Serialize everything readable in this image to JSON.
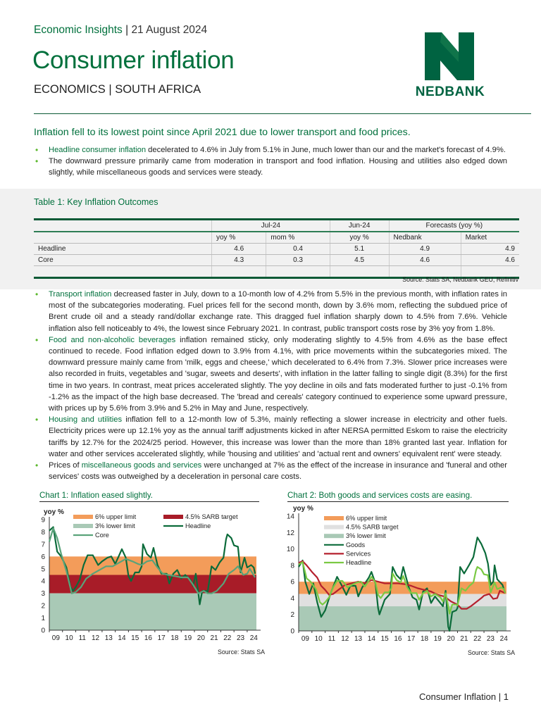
{
  "header": {
    "series": "Economic Insights",
    "separator": "|",
    "date": "21 August 2024",
    "title": "Consumer inflation",
    "subtitle": "ECONOMICS | SOUTH AFRICA",
    "logo_text": "NEDBANK"
  },
  "summary": {
    "lede": "Inflation fell to its lowest point since April 2021 due to lower transport and food prices.",
    "bullets": [
      {
        "highlight": "Headline consumer inflation",
        "text": " decelerated to 4.6% in July from 5.1% in June, much lower than our and the market's forecast of 4.9%."
      },
      {
        "highlight": "",
        "text": "The downward pressure primarily came from moderation in transport and food inflation. Housing and utilities also edged down slightly, while miscellaneous goods and services were steady."
      }
    ]
  },
  "table": {
    "title": "Table 1: Key Inflation Outcomes",
    "group_headers": [
      "",
      "Jul-24",
      "Jun-24",
      "Forecasts (yoy %)"
    ],
    "sub_headers": [
      "",
      "yoy %",
      "mom %",
      "yoy %",
      "Nedbank",
      "Market"
    ],
    "rows": [
      [
        "Headline",
        "4.6",
        "0.4",
        "5.1",
        "4.9",
        "4.9"
      ],
      [
        "Core",
        "4.3",
        "0.3",
        "4.5",
        "4.6",
        "4.6"
      ]
    ],
    "source": "Source: Stats SA, Nedbank GEU, Refinitiv"
  },
  "body": {
    "bullets": [
      {
        "prefix": "",
        "highlight": "Transport inflation",
        "text": " decreased faster in July, down to a 10-month low of 4.2% from 5.5% in the previous month, with inflation rates in most of the subcategories moderating. Fuel prices fell for the second month, down by 3.6% mom, reflecting the subdued price of Brent crude oil and a steady rand/dollar exchange rate. This dragged fuel inflation sharply down to 4.5% from 7.6%. Vehicle inflation also fell noticeably to 4%, the lowest since February 2021. In contrast, public transport costs rose by 3% yoy from 1.8%."
      },
      {
        "prefix": "",
        "highlight": "Food and non-alcoholic beverages",
        "text": " inflation remained sticky, only moderating slightly to 4.5% from 4.6% as the base effect continued to recede. Food inflation edged down to 3.9% from 4.1%, with price movements within the subcategories mixed. The downward pressure mainly came from 'milk, eggs and cheese,' which decelerated to 6.4% from 7.3%. Slower price increases were also recorded in fruits, vegetables and 'sugar, sweets and deserts', with inflation in the latter falling to single digit (8.3%) for the first time in two years. In contrast, meat prices accelerated slightly. The yoy decline in oils and fats moderated further to just -0.1% from -1.2% as the impact of the high base decreased. The 'bread and cereals' category continued to experience some upward pressure, with prices up by 5.6% from 3.9% and 5.2% in May and June, respectively."
      },
      {
        "prefix": "",
        "highlight": "Housing and utilities",
        "text": " inflation fell to a 12-month low of 5.3%, mainly reflecting a slower increase in electricity and other fuels. Electricity prices were up 12.1% yoy as the annual tariff adjustments kicked in after NERSA permitted Eskom to raise the electricity tariffs by 12.7% for the 2024/25 period. However, this increase was lower than the more than 18% granted last year. Inflation for water and other services accelerated slightly, while 'housing and utilities' and 'actual rent and owners' equivalent rent' were steady."
      },
      {
        "prefix": "Prices of ",
        "highlight": "miscellaneous goods and services",
        "text": " were unchanged at 7% as the effect of the increase in insurance and 'funeral and other services' costs was outweighed by a deceleration in personal care costs."
      }
    ]
  },
  "chart_data": [
    {
      "type": "line",
      "title": "Chart 1: Inflation eased slightly.",
      "ylabel": "yoy %",
      "ylim": [
        0,
        9
      ],
      "yticks": [
        0,
        1,
        2,
        3,
        4,
        5,
        6,
        7,
        8,
        9
      ],
      "xlim": [
        2009,
        2024.7
      ],
      "xticks": [
        "09",
        "10",
        "11",
        "12",
        "13",
        "14",
        "15",
        "16",
        "17",
        "18",
        "19",
        "20",
        "21",
        "22",
        "23",
        "24"
      ],
      "source": "Source: Stats SA",
      "legend_position": "top",
      "bands": [
        {
          "name": "6% upper limit",
          "from": 4.5,
          "to": 6,
          "color": "#f39c5a"
        },
        {
          "name": "4.5% SARB target",
          "from": 3,
          "to": 4.5,
          "color": "#a81c28"
        },
        {
          "name": "3% lower limit",
          "from": 0,
          "to": 3,
          "color": "#a9c9b6"
        }
      ],
      "series": [
        {
          "name": "Headline",
          "color": "#0b6b3a",
          "x": [
            2009.0,
            2009.3,
            2009.6,
            2009.9,
            2010.3,
            2010.6,
            2010.8,
            2011.0,
            2011.3,
            2011.6,
            2011.9,
            2012.3,
            2012.7,
            2013.0,
            2013.4,
            2013.7,
            2014.0,
            2014.3,
            2014.5,
            2014.8,
            2015.0,
            2015.2,
            2015.5,
            2015.8,
            2016.0,
            2016.1,
            2016.4,
            2016.7,
            2016.9,
            2017.2,
            2017.5,
            2017.9,
            2018.1,
            2018.4,
            2018.7,
            2019.0,
            2019.3,
            2019.7,
            2019.9,
            2020.1,
            2020.3,
            2020.4,
            2020.6,
            2020.9,
            2021.0,
            2021.3,
            2021.6,
            2021.9,
            2022.2,
            2022.4,
            2022.5,
            2022.8,
            2023.0,
            2023.3,
            2023.5,
            2023.8,
            2024.0,
            2024.3,
            2024.5,
            2024.6
          ],
          "y": [
            8.1,
            8.4,
            6.4,
            6.0,
            5.1,
            3.5,
            3.2,
            3.5,
            4.1,
            5.3,
            6.1,
            6.1,
            5.3,
            5.6,
            5.9,
            6.0,
            5.4,
            6.1,
            6.6,
            5.9,
            4.4,
            4.0,
            4.7,
            4.7,
            5.2,
            7.0,
            6.2,
            5.9,
            6.7,
            5.3,
            4.6,
            4.6,
            3.8,
            4.6,
            4.9,
            4.2,
            4.5,
            4.1,
            3.6,
            4.6,
            3.0,
            2.1,
            3.2,
            3.2,
            3.1,
            5.2,
            4.9,
            5.5,
            5.9,
            7.4,
            7.8,
            7.5,
            6.9,
            6.8,
            4.7,
            5.9,
            5.1,
            5.3,
            5.1,
            4.6
          ]
        },
        {
          "name": "Core",
          "color": "#5aa37a",
          "x": [
            2009.0,
            2009.3,
            2009.6,
            2009.9,
            2010.3,
            2010.7,
            2011.0,
            2011.4,
            2011.8,
            2012.3,
            2012.8,
            2013.3,
            2013.8,
            2014.3,
            2014.8,
            2015.3,
            2015.7,
            2016.0,
            2016.4,
            2016.8,
            2017.2,
            2017.6,
            2018.0,
            2018.5,
            2019.0,
            2019.5,
            2019.9,
            2020.3,
            2020.7,
            2021.0,
            2021.3,
            2021.7,
            2022.2,
            2022.6,
            2023.0,
            2023.3,
            2023.7,
            2024.0,
            2024.2,
            2024.6
          ],
          "y": [
            7.2,
            8.3,
            7.5,
            6.2,
            4.8,
            3.0,
            3.1,
            3.5,
            4.2,
            4.6,
            4.9,
            5.2,
            5.2,
            5.5,
            5.8,
            5.6,
            5.4,
            5.3,
            5.6,
            5.7,
            5.1,
            4.6,
            4.5,
            4.4,
            4.3,
            4.3,
            3.7,
            3.0,
            3.2,
            3.0,
            3.0,
            3.2,
            3.8,
            4.6,
            4.9,
            5.2,
            4.5,
            4.6,
            5.0,
            4.3
          ]
        }
      ]
    },
    {
      "type": "line",
      "title": "Chart 2: Both goods and services costs are easing.",
      "ylabel": "yoy %",
      "ylim": [
        0,
        14
      ],
      "yticks": [
        0,
        2,
        4,
        6,
        8,
        10,
        12,
        14
      ],
      "xlim": [
        2009,
        2024.7
      ],
      "xticks": [
        "09",
        "10",
        "11",
        "12",
        "13",
        "14",
        "15",
        "16",
        "17",
        "18",
        "19",
        "20",
        "21",
        "22",
        "23",
        "24"
      ],
      "source": "Source: Stats SA",
      "legend_position": "top",
      "bands": [
        {
          "name": "6% upper limit",
          "from": 4.5,
          "to": 6,
          "color": "#f39c5a"
        },
        {
          "name": "4.5% SARB target",
          "from": 3,
          "to": 4.5,
          "color": "#e0e0e0"
        },
        {
          "name": "3% lower limit",
          "from": 0,
          "to": 3,
          "color": "#a9c9b6"
        }
      ],
      "series": [
        {
          "name": "Goods",
          "color": "#0b6b3a",
          "x": [
            2009.0,
            2009.3,
            2009.5,
            2009.8,
            2010.1,
            2010.4,
            2010.7,
            2011.0,
            2011.4,
            2011.9,
            2012.3,
            2012.6,
            2012.9,
            2013.3,
            2013.5,
            2013.8,
            2014.3,
            2014.5,
            2014.8,
            2015.0,
            2015.1,
            2015.5,
            2015.9,
            2016.1,
            2016.4,
            2016.7,
            2016.9,
            2017.3,
            2017.6,
            2017.9,
            2018.1,
            2018.4,
            2018.7,
            2019.0,
            2019.3,
            2019.7,
            2019.9,
            2020.1,
            2020.3,
            2020.4,
            2020.6,
            2020.9,
            2021.0,
            2021.2,
            2021.5,
            2021.9,
            2022.2,
            2022.5,
            2022.8,
            2023.1,
            2023.3,
            2023.5,
            2023.7,
            2023.8,
            2024.0,
            2024.4,
            2024.6
          ],
          "y": [
            7.8,
            8.6,
            6.0,
            4.5,
            5.8,
            3.5,
            1.7,
            2.5,
            4.5,
            6.6,
            5.4,
            4.4,
            5.5,
            5.5,
            4.2,
            5.3,
            6.5,
            7.2,
            5.8,
            2.8,
            2.0,
            3.8,
            4.5,
            7.8,
            6.8,
            6.3,
            7.8,
            5.4,
            4.1,
            3.8,
            2.6,
            4.8,
            5.2,
            3.4,
            4.2,
            3.4,
            3.0,
            4.9,
            0.5,
            0.0,
            2.3,
            2.5,
            2.8,
            7.8,
            7.0,
            8.1,
            9.0,
            11.4,
            10.6,
            9.5,
            8.2,
            5.6,
            6.0,
            8.0,
            6.3,
            5.6,
            4.6
          ]
        },
        {
          "name": "Services",
          "color": "#b5202e",
          "x": [
            2009.0,
            2009.3,
            2009.6,
            2010.0,
            2010.4,
            2010.7,
            2011.0,
            2011.3,
            2011.6,
            2012.0,
            2012.5,
            2013.0,
            2013.5,
            2014.0,
            2014.5,
            2015.0,
            2015.5,
            2016.0,
            2016.5,
            2017.0,
            2017.5,
            2018.0,
            2018.5,
            2019.0,
            2019.5,
            2020.0,
            2020.5,
            2021.0,
            2021.3,
            2021.7,
            2022.0,
            2022.4,
            2022.8,
            2023.0,
            2023.4,
            2023.7,
            2024.0,
            2024.2,
            2024.6
          ],
          "y": [
            8.3,
            8.5,
            8.0,
            7.2,
            6.5,
            5.5,
            5.0,
            4.4,
            4.5,
            5.0,
            5.6,
            5.8,
            6.0,
            5.8,
            6.2,
            6.0,
            5.8,
            5.8,
            5.8,
            5.7,
            5.5,
            5.2,
            5.0,
            4.8,
            4.4,
            4.2,
            3.6,
            3.2,
            2.7,
            2.7,
            3.0,
            3.5,
            4.0,
            4.3,
            4.5,
            3.9,
            4.0,
            4.9,
            4.6
          ]
        },
        {
          "name": "Headline",
          "color": "#7ac943",
          "x": [
            2009.0,
            2009.3,
            2009.6,
            2009.9,
            2010.3,
            2010.6,
            2010.8,
            2011.0,
            2011.3,
            2011.6,
            2011.9,
            2012.3,
            2012.7,
            2013.0,
            2013.4,
            2013.7,
            2014.0,
            2014.3,
            2014.5,
            2014.8,
            2015.0,
            2015.2,
            2015.5,
            2015.8,
            2016.0,
            2016.1,
            2016.4,
            2016.7,
            2016.9,
            2017.2,
            2017.5,
            2017.9,
            2018.1,
            2018.4,
            2018.7,
            2019.0,
            2019.3,
            2019.7,
            2019.9,
            2020.1,
            2020.3,
            2020.4,
            2020.6,
            2020.9,
            2021.0,
            2021.3,
            2021.6,
            2021.9,
            2022.2,
            2022.4,
            2022.5,
            2022.8,
            2023.0,
            2023.3,
            2023.5,
            2023.8,
            2024.0,
            2024.3,
            2024.5,
            2024.6
          ],
          "y": [
            8.1,
            8.4,
            6.4,
            6.0,
            5.1,
            3.5,
            3.2,
            3.5,
            4.1,
            5.3,
            6.1,
            6.1,
            5.3,
            5.6,
            5.9,
            6.0,
            5.4,
            6.1,
            6.6,
            5.9,
            4.4,
            4.0,
            4.7,
            4.7,
            5.2,
            7.0,
            6.2,
            5.9,
            6.7,
            5.3,
            4.6,
            4.6,
            3.8,
            4.6,
            4.9,
            4.2,
            4.5,
            4.1,
            3.6,
            4.6,
            3.0,
            2.1,
            3.2,
            3.2,
            3.1,
            5.2,
            4.9,
            5.5,
            5.9,
            7.4,
            7.8,
            7.5,
            6.9,
            6.8,
            4.7,
            5.9,
            5.1,
            5.3,
            5.1,
            4.6
          ]
        }
      ]
    }
  ],
  "footer": {
    "label": "Consumer Inflation",
    "separator": "|",
    "page": "1"
  },
  "colors": {
    "brand_green": "#00703c",
    "bullet_green": "#5cb82e",
    "logo_green": "#006341"
  }
}
